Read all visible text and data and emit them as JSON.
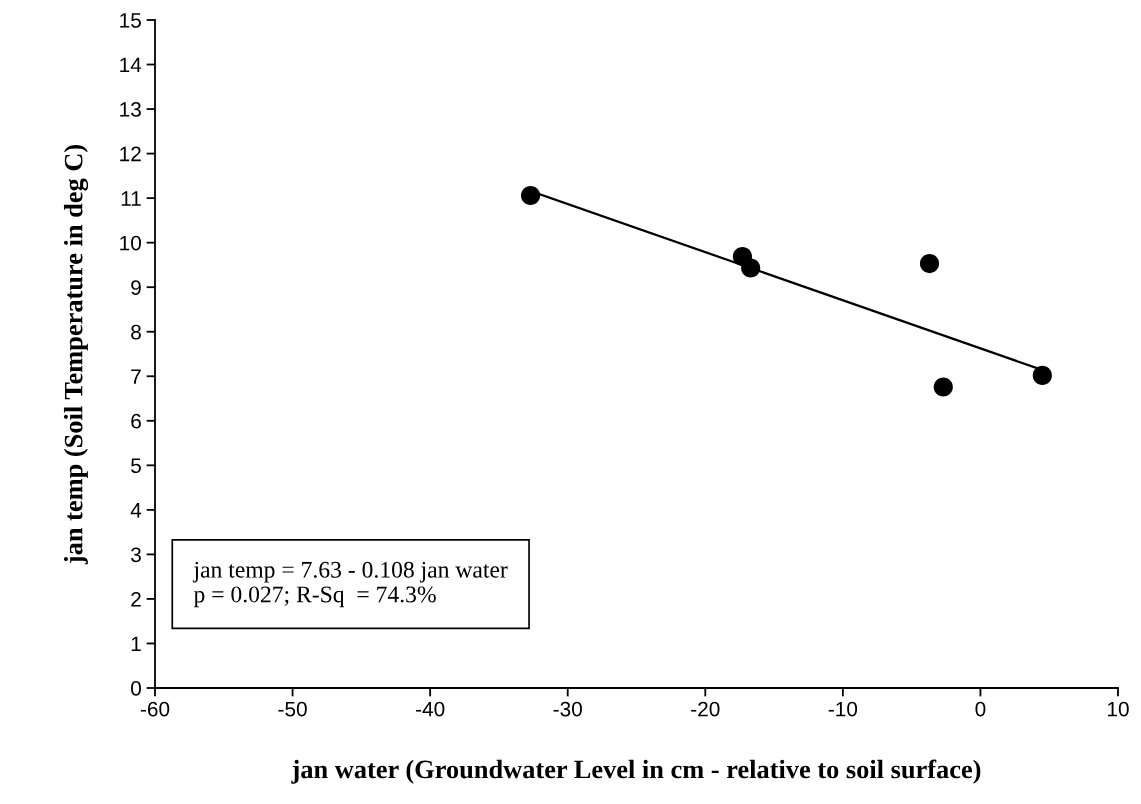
{
  "chart_data": {
    "type": "scatter",
    "xlabel": "jan water (Groundwater Level in cm - relative to soil surface)",
    "ylabel": "jan temp (Soil Temperature in deg C)",
    "series": [
      {
        "color": "#000000",
        "marker": "circle",
        "x": [
          -32.7,
          -17.3,
          -16.7,
          -3.7,
          -2.7,
          4.5
        ],
        "values": [
          11.06,
          9.69,
          9.43,
          9.53,
          6.76,
          7.02
        ]
      },
      {
        "type": "line",
        "color": "#000000",
        "marker": "none",
        "line_style": "solid",
        "x": [
          -32.7,
          4.5
        ],
        "values": [
          11.16,
          7.14
        ]
      }
    ],
    "annotations": [
      "jan temp = 7.63 - 0.108 jan water\np = 0.027; R-Sq  = 74.3%"
    ],
    "xlim": [
      -60,
      10
    ],
    "xticks": [
      -60,
      -50,
      -40,
      -30,
      -20,
      -10,
      0,
      10
    ],
    "ylim": [
      0,
      15
    ],
    "yticks": [
      0,
      1,
      2,
      3,
      4,
      5,
      6,
      7,
      8,
      9,
      10,
      11,
      12,
      13,
      14,
      15
    ],
    "grid": false,
    "legend": false
  }
}
